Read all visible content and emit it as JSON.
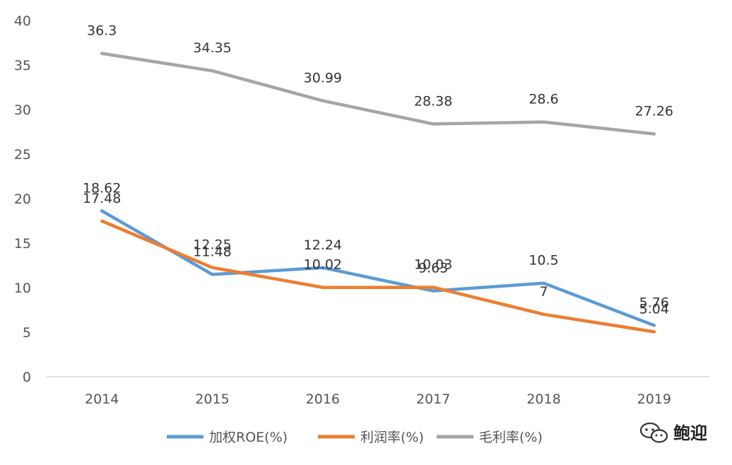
{
  "chart_data": {
    "type": "line",
    "categories": [
      "2014",
      "2015",
      "2016",
      "2017",
      "2018",
      "2019"
    ],
    "y_ticks": [
      "0",
      "5",
      "10",
      "15",
      "20",
      "25",
      "30",
      "35",
      "40"
    ],
    "ylim": [
      0,
      40
    ],
    "grid": false,
    "legend_position": "bottom",
    "series": [
      {
        "name": "加权ROE(%)",
        "color": "#5b9bd5",
        "values": [
          18.62,
          11.48,
          12.24,
          9.63,
          10.5,
          5.76
        ],
        "labels": [
          "18.62",
          "11.48",
          "12.24",
          "9.63",
          "10.5",
          "5.76"
        ]
      },
      {
        "name": "利润率(%)",
        "color": "#ed7d31",
        "values": [
          17.48,
          12.25,
          10.02,
          10.03,
          7,
          5.04
        ],
        "labels": [
          "17.48",
          "12.25",
          "10.02",
          "10.03",
          "7",
          "5.04"
        ]
      },
      {
        "name": "毛利率(%)",
        "color": "#a5a5a5",
        "values": [
          36.3,
          34.35,
          30.99,
          28.38,
          28.6,
          27.26
        ],
        "labels": [
          "36.3",
          "34.35",
          "30.99",
          "28.38",
          "28.6",
          "27.26"
        ]
      }
    ]
  },
  "watermark": {
    "text": "鲍迎",
    "icon": "wechat-icon"
  }
}
